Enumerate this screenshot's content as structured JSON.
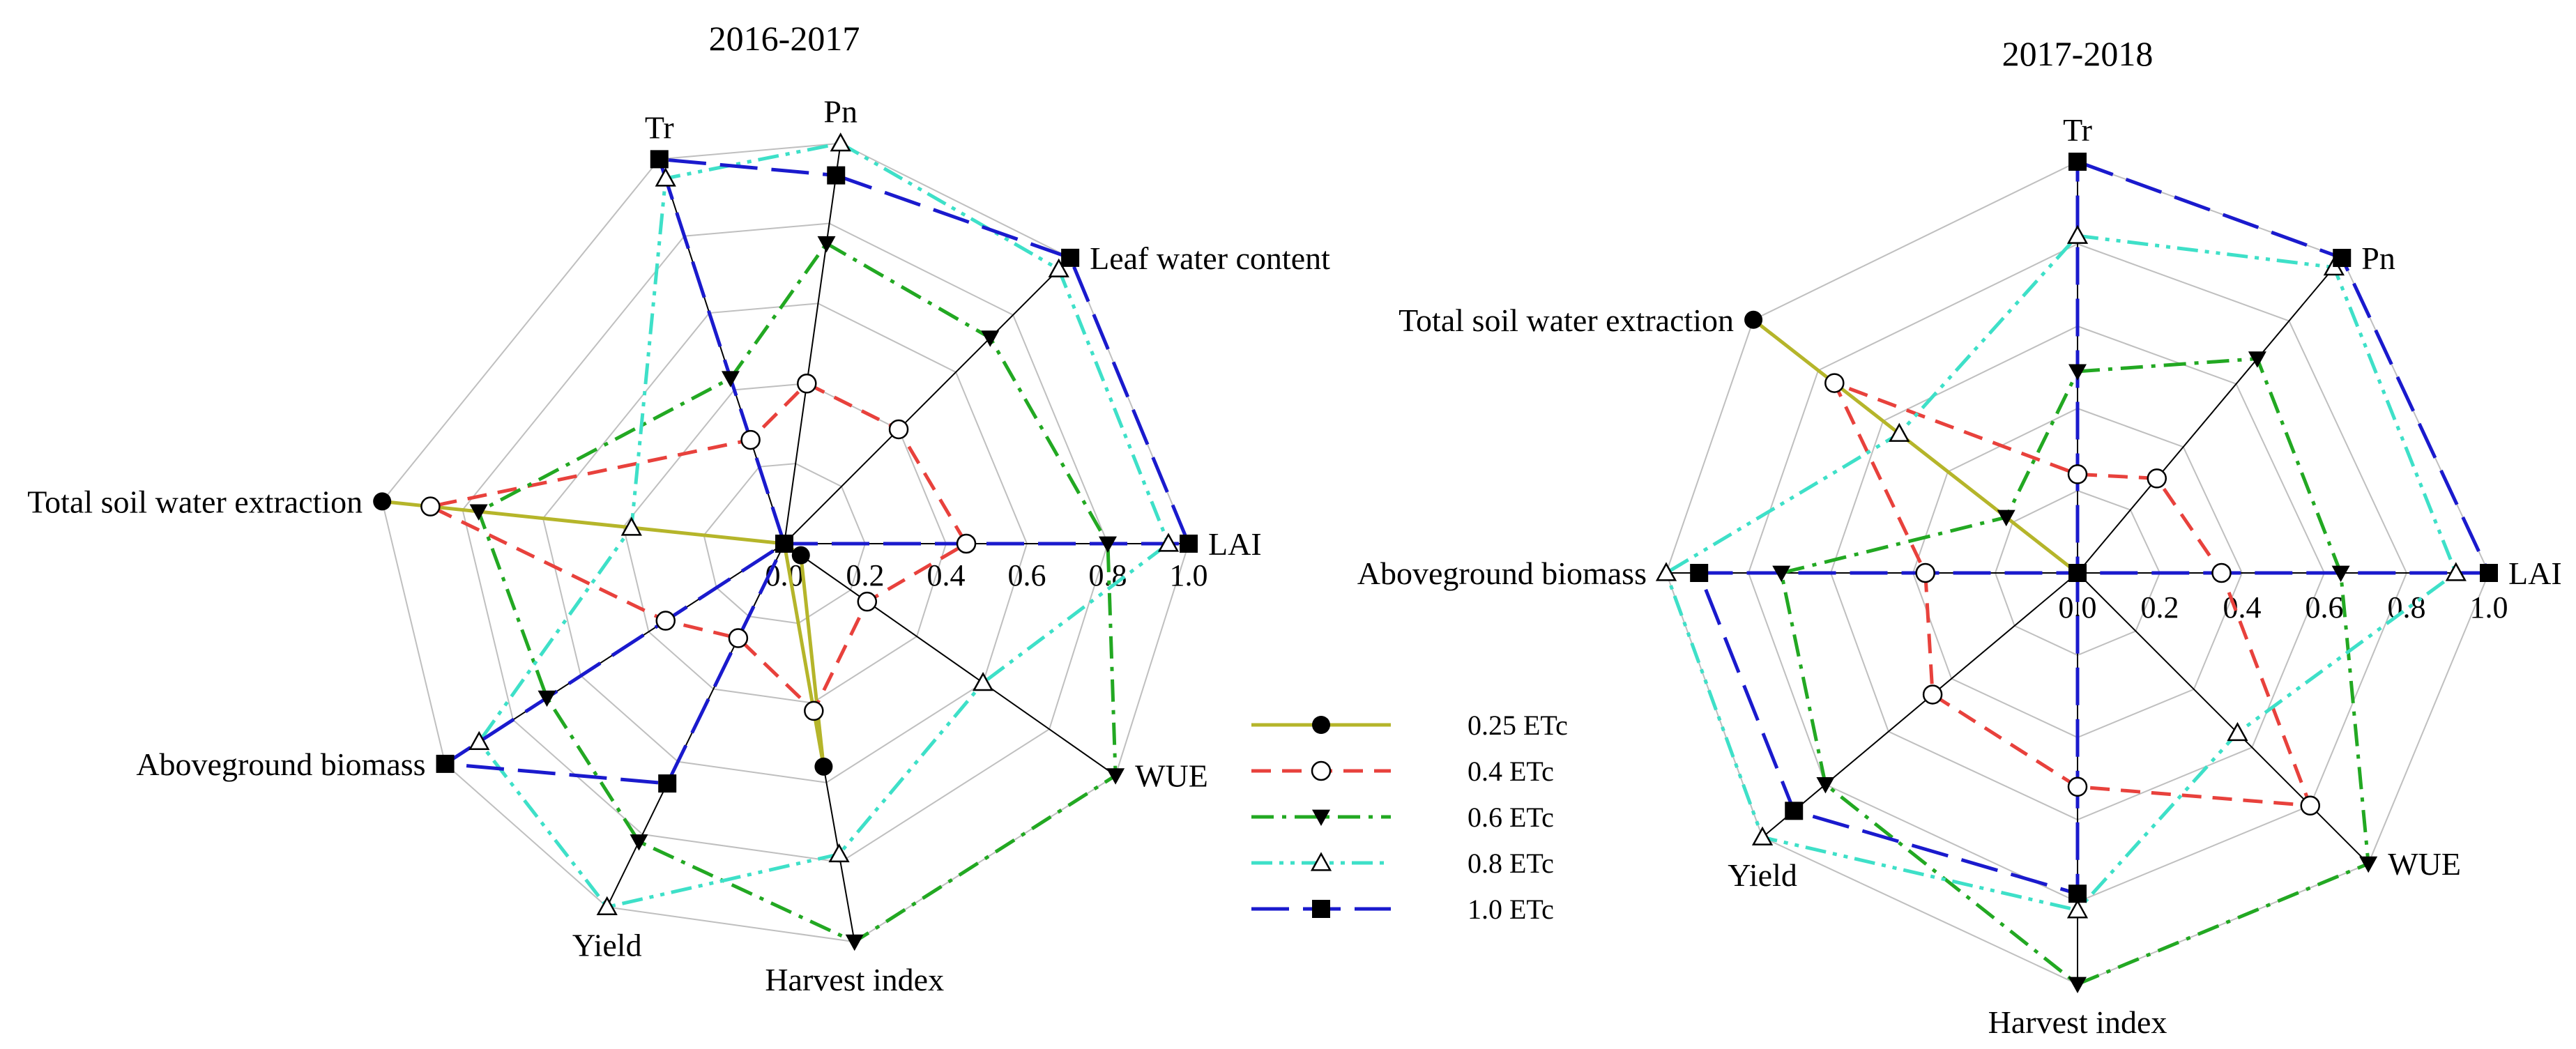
{
  "chart_data": [
    {
      "type": "radar",
      "title": "2016-2017",
      "axes": [
        "Pn",
        "Leaf water content",
        "LAI",
        "WUE",
        "Harvest index",
        "Yield",
        "Aboveground biomass",
        "Total soil water extraction",
        "Tr"
      ],
      "radial_ticks": [
        "0.0",
        "0.2",
        "0.4",
        "0.6",
        "0.8",
        "1.0"
      ],
      "range": [
        0,
        1
      ],
      "series": [
        {
          "name": "0.25 ETc",
          "color": "#b5b52a",
          "dash": "solid",
          "marker": "filled-circle",
          "values": [
            0.0,
            0.0,
            0.0,
            0.05,
            0.56,
            0.0,
            0.0,
            1.0,
            0.0
          ]
        },
        {
          "name": "0.4 ETc",
          "color": "#e8413c",
          "dash": "dashed",
          "marker": "open-circle",
          "values": [
            0.4,
            0.4,
            0.45,
            0.25,
            0.42,
            0.26,
            0.35,
            0.88,
            0.27
          ]
        },
        {
          "name": "0.6 ETc",
          "color": "#22a822",
          "dash": "dashdot",
          "marker": "filled-triangle-down",
          "values": [
            0.75,
            0.72,
            0.8,
            1.0,
            1.0,
            0.82,
            0.7,
            0.76,
            0.43
          ]
        },
        {
          "name": "0.8 ETc",
          "color": "#3ee0c8",
          "dash": "dashdotdot",
          "marker": "open-triangle-up",
          "values": [
            1.0,
            0.96,
            0.95,
            0.6,
            0.78,
            1.0,
            0.9,
            0.38,
            0.95
          ]
        },
        {
          "name": "1.0 ETc",
          "color": "#1a1acd",
          "dash": "longdash",
          "marker": "filled-square",
          "values": [
            0.92,
            1.0,
            1.0,
            0.0,
            0.0,
            0.66,
            1.0,
            0.0,
            1.0
          ]
        }
      ]
    },
    {
      "type": "radar",
      "title": "2017-2018",
      "axes": [
        "Tr",
        "Pn",
        "LAI",
        "WUE",
        "Harvest index",
        "Yield",
        "Aboveground biomass",
        "Total soil water extraction"
      ],
      "radial_ticks": [
        "0.0",
        "0.2",
        "0.4",
        "0.6",
        "0.8",
        "1.0"
      ],
      "range": [
        0,
        1
      ],
      "series": [
        {
          "name": "0.25 ETc",
          "color": "#b5b52a",
          "dash": "solid",
          "marker": "filled-circle",
          "values": [
            0.0,
            0.0,
            0.0,
            0.0,
            0.0,
            0.0,
            0.0,
            1.0
          ]
        },
        {
          "name": "0.4 ETc",
          "color": "#e8413c",
          "dash": "dashed",
          "marker": "open-circle",
          "values": [
            0.24,
            0.3,
            0.35,
            0.8,
            0.52,
            0.46,
            0.37,
            0.75
          ]
        },
        {
          "name": "0.6 ETc",
          "color": "#22a822",
          "dash": "dashdot",
          "marker": "filled-triangle-down",
          "values": [
            0.49,
            0.68,
            0.64,
            1.0,
            1.0,
            0.8,
            0.72,
            0.22
          ]
        },
        {
          "name": "0.8 ETc",
          "color": "#3ee0c8",
          "dash": "dashdotdot",
          "marker": "open-triangle-up",
          "values": [
            0.82,
            0.97,
            0.92,
            0.55,
            0.82,
            1.0,
            1.0,
            0.55
          ]
        },
        {
          "name": "1.0 ETc",
          "color": "#1a1acd",
          "dash": "longdash",
          "marker": "filled-square",
          "values": [
            1.0,
            1.0,
            1.0,
            0.0,
            0.78,
            0.9,
            0.92,
            0.0
          ]
        }
      ]
    }
  ]
}
